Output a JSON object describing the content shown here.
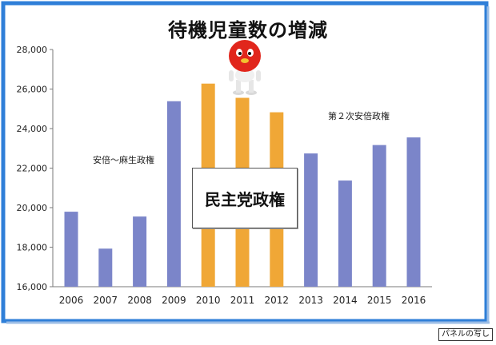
{
  "colors": {
    "background": "#ffffff",
    "frame": "#2f7fd8",
    "bar_default": "#7b85c9",
    "bar_highlight": "#f0a736",
    "axis": "#7a7a7a",
    "mascot_red": "#e1261c"
  },
  "caption": "パネルの写し",
  "annotations": {
    "abe_aso": "安倍〜麻生政権",
    "abe_second": "第２次安倍政権",
    "dpj": "民主党政権"
  },
  "mascot": {
    "icon": "red-ball-mascot-icon"
  },
  "chart_data": {
    "type": "bar",
    "title": "待機児童数の増減",
    "xlabel": "",
    "ylabel": "",
    "categories": [
      "2006",
      "2007",
      "2008",
      "2009",
      "2010",
      "2011",
      "2012",
      "2013",
      "2014",
      "2015",
      "2016"
    ],
    "values": [
      19794,
      17926,
      19550,
      25384,
      26275,
      25556,
      24825,
      22741,
      21371,
      23167,
      23553
    ],
    "highlight": [
      false,
      false,
      false,
      false,
      true,
      true,
      true,
      false,
      false,
      false,
      false
    ],
    "ylim": [
      16000,
      28000
    ],
    "yticks": [
      16000,
      18000,
      20000,
      22000,
      24000,
      26000,
      28000
    ],
    "ytick_labels": [
      "16,000",
      "18,000",
      "20,000",
      "22,000",
      "24,000",
      "26,000",
      "28,000"
    ],
    "grid": false,
    "legend": "none"
  }
}
